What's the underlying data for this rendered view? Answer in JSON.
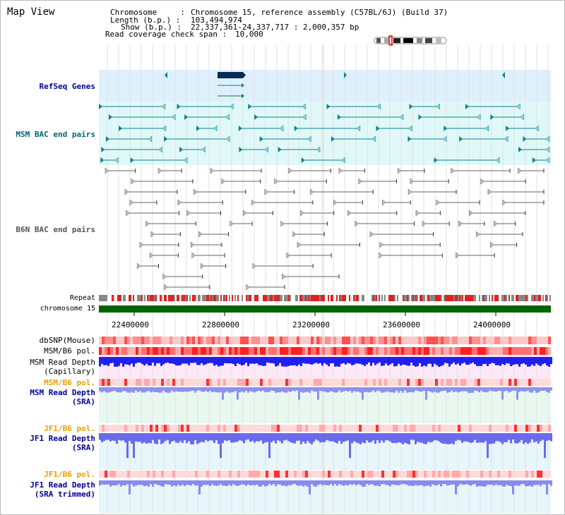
{
  "page": {
    "title": "Map View"
  },
  "header": {
    "chromosome_label": "Chromosome     :",
    "chromosome_value": "Chromosome 15, reference assembly (C57BL/6J) (Build 37)",
    "length_label": "Length (b.p.) :",
    "length_value": "103,494,974",
    "show_label": "Show (b.p.) :",
    "show_value": "22,337,361-24,337,717 : 2,000,357 bp",
    "coverage_label": "Read coverage check span :",
    "coverage_value": "10,000"
  },
  "tracks": {
    "refseq_genes": "RefSeq Genes",
    "msm_bac": "MSM BAC end pairs",
    "b6n_bac": "B6N BAC end pairs",
    "repeat": "Repeat",
    "chromosome": "chromosome 15",
    "dbsnp": "dbSNP(Mouse)",
    "msm_b6_pol": "MSM/B6 pol.",
    "msm_read_depth_cap_1": "MSM Read Depth",
    "msm_read_depth_cap_2": "(Capillary)",
    "msm_b6_pol_sra": "MSM/B6 pol.",
    "msm_read_depth_sra_1": "MSM Read Depth",
    "msm_read_depth_sra_2": "(SRA)",
    "jf1_b6_pol_1": "JF1/B6 pol.",
    "jf1_read_depth_sra_1": "JF1 Read Depth",
    "jf1_read_depth_sra_2": "(SRA)",
    "jf1_b6_pol_2": "JF1/B6 pol.",
    "jf1_read_depth_trim_1": "JF1 Read Depth",
    "jf1_read_depth_trim_2": "(SRA trimmed)"
  },
  "axis_ticks": [
    "22400000",
    "22800000",
    "23200000",
    "23600000",
    "24000000"
  ],
  "colors": {
    "refseq_bg": "#ddf0fb",
    "msm_bg": "#e0f8f8",
    "gene_dark": "#0a2a55",
    "msm_feature": "#11808f",
    "b6n_feature": "#666666",
    "chromosome_bar": "#006400",
    "snp_red": "#ff4040",
    "depth_blue": "#2020ee",
    "depth_light": "#8080ee",
    "label_blue": "#000099",
    "label_orange": "#e6a000",
    "label_teal": "#006677"
  }
}
